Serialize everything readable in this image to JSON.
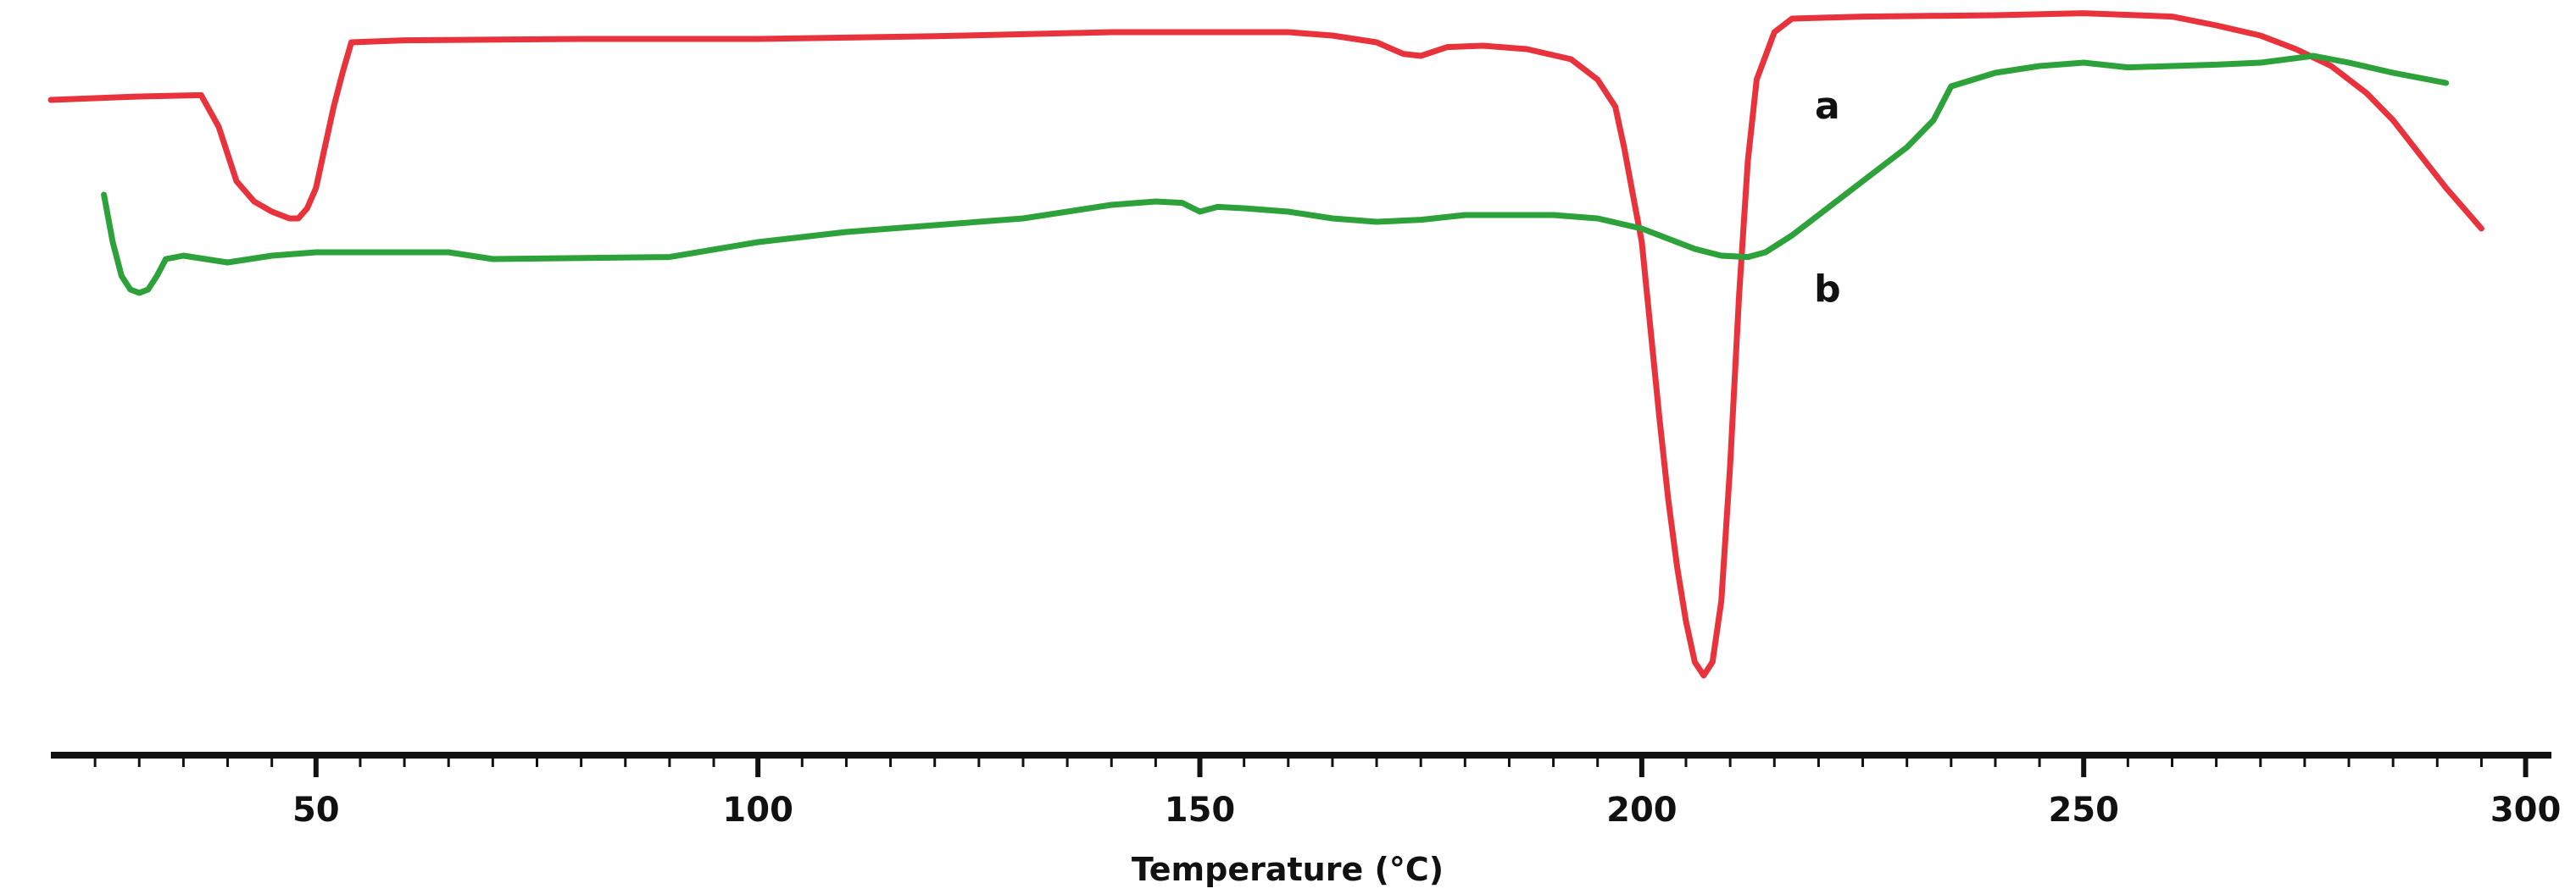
{
  "chart_data": {
    "type": "line",
    "title": "",
    "xlabel": "Temperature (°C)",
    "ylabel": "",
    "xlim": [
      20,
      301
    ],
    "ylim": [
      0,
      100
    ],
    "x_ticks": [
      50,
      100,
      150,
      200,
      250,
      300
    ],
    "grid": false,
    "legend": "none",
    "series": [
      {
        "name": "a",
        "color": "#e8323c",
        "points": [
          [
            20,
            89
          ],
          [
            30,
            89.5
          ],
          [
            37,
            89.7
          ],
          [
            39,
            85
          ],
          [
            41,
            77
          ],
          [
            43,
            74
          ],
          [
            45,
            72.5
          ],
          [
            47,
            71.5
          ],
          [
            48,
            71.5
          ],
          [
            49,
            73
          ],
          [
            50,
            76
          ],
          [
            51,
            82
          ],
          [
            52,
            88
          ],
          [
            53,
            93
          ],
          [
            54,
            97.5
          ],
          [
            60,
            97.8
          ],
          [
            80,
            98
          ],
          [
            100,
            98
          ],
          [
            120,
            98.4
          ],
          [
            140,
            99
          ],
          [
            160,
            99
          ],
          [
            165,
            98.5
          ],
          [
            170,
            97.5
          ],
          [
            173,
            95.8
          ],
          [
            175,
            95.5
          ],
          [
            178,
            96.8
          ],
          [
            182,
            97
          ],
          [
            187,
            96.5
          ],
          [
            192,
            95
          ],
          [
            195,
            92
          ],
          [
            197,
            88
          ],
          [
            198,
            82
          ],
          [
            199,
            75
          ],
          [
            200,
            68
          ],
          [
            201,
            55
          ],
          [
            202,
            42
          ],
          [
            203,
            30
          ],
          [
            204,
            20
          ],
          [
            205,
            12
          ],
          [
            206,
            6
          ],
          [
            207,
            4
          ],
          [
            208,
            6
          ],
          [
            209,
            15
          ],
          [
            210,
            35
          ],
          [
            211,
            60
          ],
          [
            212,
            80
          ],
          [
            213,
            92
          ],
          [
            215,
            99
          ],
          [
            217,
            101
          ],
          [
            225,
            101.3
          ],
          [
            240,
            101.5
          ],
          [
            250,
            101.8
          ],
          [
            260,
            101.3
          ],
          [
            265,
            100
          ],
          [
            270,
            98.5
          ],
          [
            274,
            96.5
          ],
          [
            278,
            94
          ],
          [
            282,
            90
          ],
          [
            285,
            86
          ],
          [
            288,
            81
          ],
          [
            291,
            76
          ],
          [
            293,
            73
          ],
          [
            295,
            70
          ]
        ]
      },
      {
        "name": "b",
        "color": "#2ea23a",
        "points": [
          [
            26,
            75
          ],
          [
            27,
            68
          ],
          [
            28,
            63
          ],
          [
            29,
            61
          ],
          [
            30,
            60.5
          ],
          [
            31,
            61
          ],
          [
            32,
            63
          ],
          [
            33,
            65.5
          ],
          [
            35,
            66
          ],
          [
            40,
            65
          ],
          [
            45,
            66
          ],
          [
            50,
            66.5
          ],
          [
            65,
            66.5
          ],
          [
            70,
            65.5
          ],
          [
            90,
            65.8
          ],
          [
            100,
            68
          ],
          [
            110,
            69.5
          ],
          [
            120,
            70.5
          ],
          [
            130,
            71.5
          ],
          [
            140,
            73.5
          ],
          [
            145,
            74
          ],
          [
            148,
            73.8
          ],
          [
            150,
            72.5
          ],
          [
            152,
            73.2
          ],
          [
            155,
            73
          ],
          [
            160,
            72.5
          ],
          [
            165,
            71.5
          ],
          [
            170,
            71
          ],
          [
            175,
            71.3
          ],
          [
            180,
            72
          ],
          [
            190,
            72
          ],
          [
            195,
            71.5
          ],
          [
            200,
            70
          ],
          [
            203,
            68.5
          ],
          [
            206,
            67
          ],
          [
            209,
            66
          ],
          [
            212,
            65.8
          ],
          [
            214,
            66.5
          ],
          [
            217,
            69
          ],
          [
            220,
            72
          ],
          [
            225,
            77
          ],
          [
            230,
            82
          ],
          [
            233,
            86
          ],
          [
            235,
            91
          ],
          [
            240,
            93
          ],
          [
            245,
            94
          ],
          [
            250,
            94.5
          ],
          [
            255,
            93.8
          ],
          [
            260,
            94
          ],
          [
            265,
            94.2
          ],
          [
            270,
            94.5
          ],
          [
            276,
            95.5
          ],
          [
            280,
            94.5
          ],
          [
            285,
            93
          ],
          [
            291,
            91.5
          ]
        ]
      }
    ]
  }
}
